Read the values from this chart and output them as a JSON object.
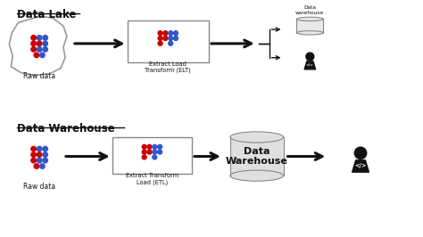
{
  "bg_color": "#ffffff",
  "title_lake": "Data Lake",
  "title_warehouse": "Data Warehouse",
  "label_raw": "Raw data",
  "label_elt": "Extract Load\nTransform (ELT)",
  "label_etl": "Extract Transform\nLoad (ETL)",
  "label_dw_small": "Data\nwarehouse",
  "label_dw_large": "Data\nWarehouse",
  "red_color": "#cc0000",
  "blue_color": "#3355cc",
  "arrow_color": "#111111",
  "box_edge": "#888888",
  "text_color": "#111111",
  "person_color": "#111111"
}
